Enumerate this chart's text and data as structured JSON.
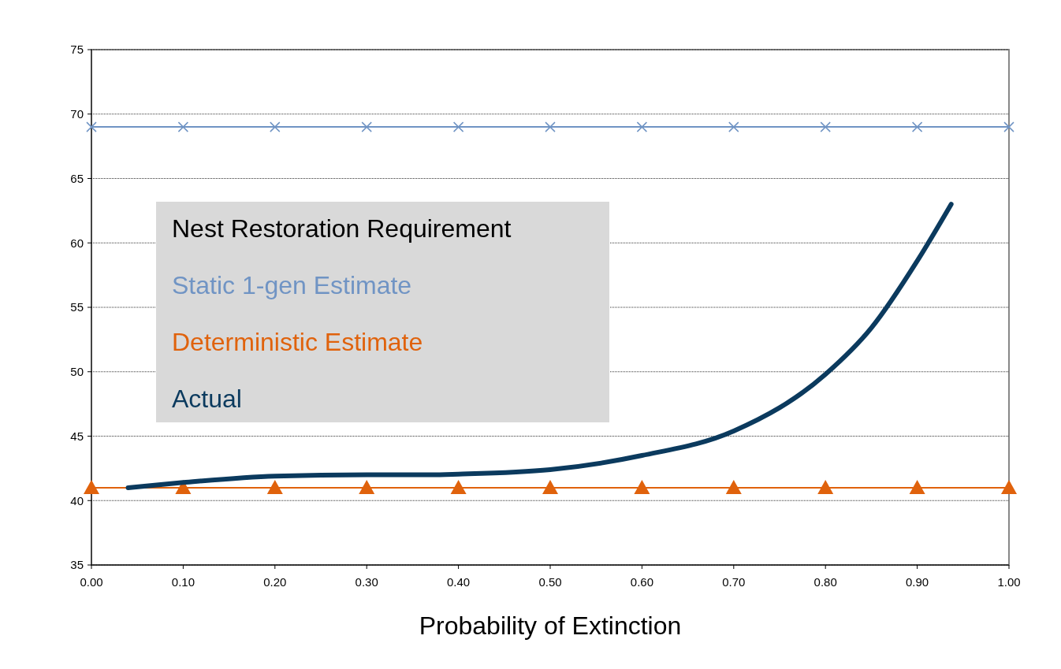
{
  "chart_data": {
    "type": "line",
    "xlabel": "Probability of Extinction",
    "legend_title": "Nest Restoration Requirement",
    "legend": "left",
    "grid": "y",
    "xlim": [
      0,
      1
    ],
    "xticks": [
      {
        "value": 0,
        "label": "0.00"
      },
      {
        "value": 0.1,
        "label": "0.10"
      },
      {
        "value": 0.2,
        "label": "0.20"
      },
      {
        "value": 0.3,
        "label": "0.30"
      },
      {
        "value": 0.4,
        "label": "0.40"
      },
      {
        "value": 0.5,
        "label": "0.50"
      },
      {
        "value": 0.6,
        "label": "0.60"
      },
      {
        "value": 0.7,
        "label": "0.70"
      },
      {
        "value": 0.8,
        "label": "0.80"
      },
      {
        "value": 0.9,
        "label": "0.90"
      },
      {
        "value": 1,
        "label": "1.00"
      }
    ],
    "ylim": [
      35,
      75
    ],
    "yticks": [
      35,
      40,
      45,
      50,
      55,
      60,
      65,
      70,
      75
    ],
    "series": [
      {
        "name": "Static 1-gen Estimate",
        "color": "#7094c4",
        "marker": "cross",
        "x": [
          0,
          0.1,
          0.2,
          0.3,
          0.4,
          0.5,
          0.6,
          0.7,
          0.8,
          0.9,
          1
        ],
        "values": [
          69,
          69,
          69,
          69,
          69,
          69,
          69,
          69,
          69,
          69,
          69
        ]
      },
      {
        "name": "Deterministic Estimate",
        "color": "#e0620c",
        "marker": "triangle",
        "x": [
          0,
          0.1,
          0.2,
          0.3,
          0.4,
          0.5,
          0.6,
          0.7,
          0.8,
          0.9,
          1
        ],
        "values": [
          41,
          41,
          41,
          41,
          41,
          41,
          41,
          41,
          41,
          41,
          41
        ]
      },
      {
        "name": "Actual",
        "color": "#0b3a5e",
        "marker": "none",
        "x": [
          0.04,
          0.1,
          0.2,
          0.3,
          0.37,
          0.4,
          0.5,
          0.6,
          0.7,
          0.8,
          0.85,
          0.9,
          0.937
        ],
        "values": [
          41,
          41.4,
          41.9,
          42,
          42,
          42.05,
          42.4,
          43.5,
          45.4,
          49.8,
          53.4,
          58.6,
          63
        ]
      }
    ]
  }
}
